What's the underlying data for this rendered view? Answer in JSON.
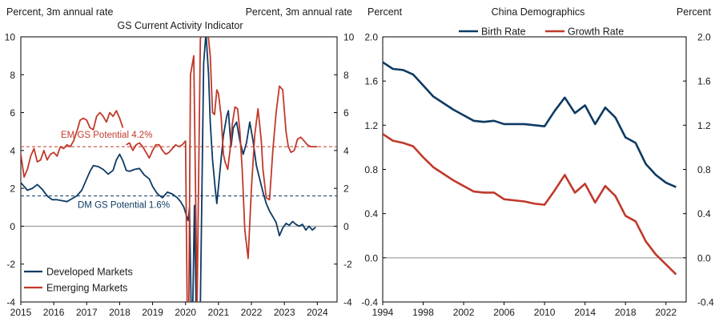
{
  "chart_data": [
    {
      "type": "line",
      "title": "GS Current Activity Indicator",
      "ylabel_left": "Percent, 3m annual rate",
      "ylabel_right": "Percent, 3m annual rate",
      "xlim": [
        2015,
        2024.6
      ],
      "ylim": [
        -4,
        10
      ],
      "yticks": [
        -4,
        -2,
        0,
        2,
        4,
        6,
        8,
        10
      ],
      "xticks": [
        2015,
        2016,
        2017,
        2018,
        2019,
        2020,
        2021,
        2022,
        2023,
        2024
      ],
      "grid": false,
      "legend_position": "bottom-left",
      "series": [
        {
          "name": "Developed Markets",
          "color": "#0d3a63",
          "x": [
            2015.0,
            2015.1,
            2015.2,
            2015.35,
            2015.5,
            2015.65,
            2015.8,
            2015.95,
            2016.1,
            2016.25,
            2016.4,
            2016.55,
            2016.7,
            2016.85,
            2017.0,
            2017.1,
            2017.2,
            2017.35,
            2017.5,
            2017.65,
            2017.8,
            2017.9,
            2018.0,
            2018.1,
            2018.2,
            2018.3,
            2018.45,
            2018.6,
            2018.75,
            2018.9,
            2019.0,
            2019.15,
            2019.3,
            2019.45,
            2019.6,
            2019.75,
            2019.85,
            2019.95,
            2020.02,
            2020.08,
            2020.12,
            2020.17,
            2020.22,
            2020.27,
            2020.32,
            2020.45,
            2020.55,
            2020.62,
            2020.7,
            2020.75,
            2020.82,
            2020.9,
            2020.95,
            2021.05,
            2021.15,
            2021.25,
            2021.3,
            2021.38,
            2021.45,
            2021.55,
            2021.65,
            2021.75,
            2021.85,
            2021.95,
            2022.05,
            2022.15,
            2022.25,
            2022.35,
            2022.45,
            2022.55,
            2022.65,
            2022.75,
            2022.85,
            2022.95,
            2023.05,
            2023.15,
            2023.25,
            2023.35,
            2023.45,
            2023.55,
            2023.65,
            2023.75,
            2023.85,
            2023.95
          ],
          "values": [
            2.3,
            2.1,
            1.9,
            2.0,
            2.2,
            1.95,
            1.6,
            1.4,
            1.4,
            1.35,
            1.3,
            1.45,
            1.6,
            1.9,
            2.5,
            2.9,
            3.2,
            3.15,
            3.0,
            2.75,
            2.95,
            3.5,
            3.8,
            3.45,
            2.95,
            2.9,
            3.0,
            3.05,
            2.7,
            2.5,
            2.1,
            1.7,
            1.5,
            1.8,
            1.7,
            1.5,
            1.3,
            1.0,
            0.6,
            0.3,
            1.0,
            -4.2,
            -4.2,
            1.1,
            -4.2,
            -4.2,
            8.6,
            10.2,
            8.0,
            5.5,
            3.5,
            2.0,
            1.2,
            3.0,
            4.8,
            5.8,
            6.1,
            4.2,
            5.2,
            5.5,
            4.5,
            3.8,
            4.4,
            5.5,
            4.5,
            3.2,
            2.5,
            1.8,
            1.2,
            0.8,
            0.5,
            0.2,
            -0.5,
            -0.1,
            0.15,
            0.05,
            0.25,
            0.1,
            0.0,
            0.1,
            -0.2,
            0.0,
            -0.2,
            -0.05
          ]
        },
        {
          "name": "Emerging Markets",
          "color": "#c0392b",
          "x": [
            2015.0,
            2015.1,
            2015.2,
            2015.3,
            2015.4,
            2015.5,
            2015.6,
            2015.7,
            2015.8,
            2015.9,
            2016.0,
            2016.1,
            2016.2,
            2016.3,
            2016.4,
            2016.5,
            2016.6,
            2016.7,
            2016.8,
            2016.9,
            2017.0,
            2017.1,
            2017.2,
            2017.3,
            2017.4,
            2017.5,
            2017.6,
            2017.7,
            2017.8,
            2017.9,
            2018.0,
            2018.1,
            2018.2,
            2018.3,
            2018.4,
            2018.5,
            2018.6,
            2018.7,
            2018.8,
            2018.9,
            2019.0,
            2019.1,
            2019.2,
            2019.3,
            2019.4,
            2019.5,
            2019.6,
            2019.7,
            2019.8,
            2019.9,
            2020.0,
            2020.05,
            2020.1,
            2020.15,
            2020.25,
            2020.35,
            2020.45,
            2020.52,
            2020.6,
            2020.68,
            2020.75,
            2020.82,
            2020.88,
            2020.95,
            2021.0,
            2021.08,
            2021.15,
            2021.2,
            2021.28,
            2021.35,
            2021.42,
            2021.5,
            2021.58,
            2021.65,
            2021.72,
            2021.8,
            2021.9,
            2022.0,
            2022.1,
            2022.2,
            2022.3,
            2022.35,
            2022.45,
            2022.55,
            2022.65,
            2022.75,
            2022.85,
            2022.95,
            2023.05,
            2023.12,
            2023.2,
            2023.3,
            2023.4,
            2023.5,
            2023.6,
            2023.7,
            2023.8,
            2023.9,
            2024.0
          ],
          "values": [
            3.8,
            2.6,
            3.0,
            3.7,
            4.1,
            3.4,
            3.5,
            4.0,
            3.5,
            3.8,
            3.9,
            3.7,
            4.2,
            4.1,
            4.3,
            4.2,
            4.5,
            5.0,
            5.6,
            5.7,
            5.6,
            5.2,
            5.1,
            5.8,
            6.0,
            5.8,
            5.5,
            6.0,
            5.8,
            6.1,
            5.7,
            5.2,
            4.3,
            4.4,
            4.0,
            4.3,
            4.4,
            4.2,
            3.9,
            3.6,
            4.0,
            4.3,
            4.3,
            4.0,
            3.8,
            3.9,
            4.1,
            4.3,
            4.2,
            4.3,
            4.5,
            -4.2,
            -4.2,
            8.0,
            9.0,
            -4.2,
            9.9,
            10.2,
            10.2,
            10.2,
            9.0,
            6.0,
            5.9,
            7.2,
            7.0,
            5.8,
            3.8,
            3.4,
            3.0,
            4.0,
            5.4,
            6.3,
            6.2,
            5.0,
            3.0,
            -0.2,
            -1.7,
            2.0,
            4.8,
            6.2,
            4.5,
            3.0,
            1.5,
            1.4,
            4.0,
            6.0,
            7.4,
            7.2,
            5.0,
            4.2,
            3.9,
            4.0,
            4.6,
            4.7,
            4.5,
            4.3,
            4.2,
            4.2,
            4.2
          ],
          "segments": [
            [
              0,
              31
            ],
            [
              32,
              99
            ]
          ]
        }
      ],
      "reference_lines": [
        {
          "label": "EM GS Potential 4.2%",
          "y": 4.2,
          "color": "#c0392b",
          "style": "dashed"
        },
        {
          "label": "DM GS Potential 1.6%",
          "y": 1.6,
          "color": "#0d3a63",
          "style": "dashed"
        }
      ],
      "zero_line": true
    },
    {
      "type": "line",
      "title": "China Demographics",
      "ylabel_left": "Percent",
      "ylabel_right": "Percent",
      "xlim": [
        1994,
        2024
      ],
      "ylim": [
        -0.4,
        2.0
      ],
      "yticks": [
        -0.4,
        0.0,
        0.4,
        0.8,
        1.2,
        1.6,
        2.0
      ],
      "ytick_labels": [
        "-0.4",
        "0.0",
        "0.4",
        "0.8",
        "1.2",
        "1.6",
        "2.0"
      ],
      "xticks": [
        1994,
        1998,
        2002,
        2006,
        2010,
        2014,
        2018,
        2022
      ],
      "grid": false,
      "legend_position": "top",
      "series": [
        {
          "name": "Birth Rate",
          "color": "#0d3a63",
          "x": [
            1994,
            1995,
            1996,
            1997,
            1998,
            1999,
            2000,
            2001,
            2002,
            2003,
            2004,
            2005,
            2006,
            2007,
            2008,
            2009,
            2010,
            2011,
            2012,
            2013,
            2014,
            2015,
            2016,
            2017,
            2018,
            2019,
            2020,
            2021,
            2022,
            2023
          ],
          "values": [
            1.77,
            1.71,
            1.7,
            1.66,
            1.56,
            1.46,
            1.4,
            1.34,
            1.29,
            1.24,
            1.23,
            1.24,
            1.21,
            1.21,
            1.21,
            1.2,
            1.19,
            1.33,
            1.45,
            1.31,
            1.38,
            1.21,
            1.36,
            1.27,
            1.09,
            1.04,
            0.85,
            0.75,
            0.68,
            0.64
          ]
        },
        {
          "name": "Growth Rate",
          "color": "#c0392b",
          "x": [
            1994,
            1995,
            1996,
            1997,
            1998,
            1999,
            2000,
            2001,
            2002,
            2003,
            2004,
            2005,
            2006,
            2007,
            2008,
            2009,
            2010,
            2011,
            2012,
            2013,
            2014,
            2015,
            2016,
            2017,
            2018,
            2019,
            2020,
            2021,
            2022,
            2023
          ],
          "values": [
            1.12,
            1.06,
            1.04,
            1.01,
            0.91,
            0.82,
            0.76,
            0.7,
            0.65,
            0.6,
            0.59,
            0.59,
            0.53,
            0.52,
            0.51,
            0.49,
            0.48,
            0.61,
            0.75,
            0.59,
            0.67,
            0.5,
            0.65,
            0.56,
            0.38,
            0.33,
            0.15,
            0.03,
            -0.06,
            -0.15
          ]
        }
      ],
      "zero_line": true
    }
  ]
}
